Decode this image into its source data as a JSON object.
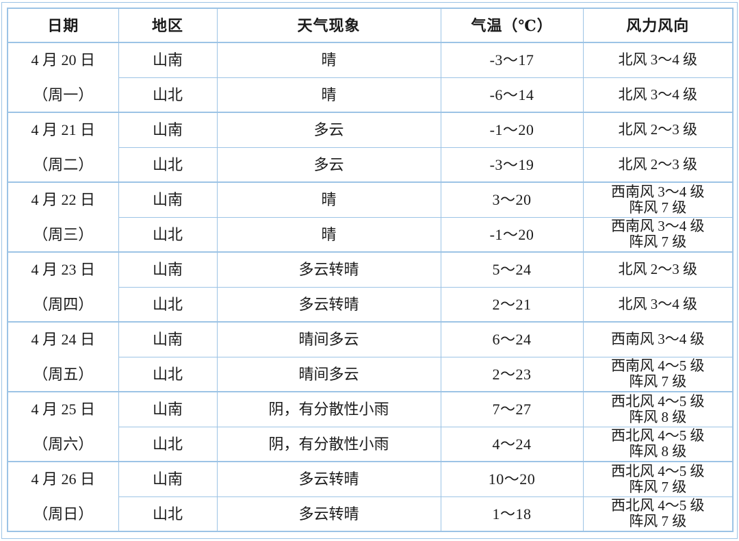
{
  "colors": {
    "border": "#9cc3e5",
    "text": "#1a1a1a",
    "background": "#ffffff"
  },
  "table": {
    "headers": [
      "日期",
      "地区",
      "天气现象",
      "气温（℃）",
      "风力风向"
    ],
    "days": [
      {
        "date1": "4 月 20 日",
        "date2": "（周一）",
        "rows": [
          {
            "region": "山南",
            "weather": "晴",
            "temp": "-3～17",
            "wind": "北风 3～4 级"
          },
          {
            "region": "山北",
            "weather": "晴",
            "temp": "-6～14",
            "wind": "北风 3～4 级"
          }
        ]
      },
      {
        "date1": "4 月 21 日",
        "date2": "（周二）",
        "rows": [
          {
            "region": "山南",
            "weather": "多云",
            "temp": "-1～20",
            "wind": "北风 2～3 级"
          },
          {
            "region": "山北",
            "weather": "多云",
            "temp": "-3～19",
            "wind": "北风 2～3 级"
          }
        ]
      },
      {
        "date1": "4 月 22 日",
        "date2": "（周三）",
        "rows": [
          {
            "region": "山南",
            "weather": "晴",
            "temp": "3～20",
            "wind": "西南风 3～4 级\n阵风 7 级"
          },
          {
            "region": "山北",
            "weather": "晴",
            "temp": "-1～20",
            "wind": "西南风 3～4 级\n阵风 7 级"
          }
        ]
      },
      {
        "date1": "4 月 23 日",
        "date2": "（周四）",
        "rows": [
          {
            "region": "山南",
            "weather": "多云转晴",
            "temp": "5～24",
            "wind": "北风 2～3 级"
          },
          {
            "region": "山北",
            "weather": "多云转晴",
            "temp": "2～21",
            "wind": "北风 3～4 级"
          }
        ]
      },
      {
        "date1": "4 月 24 日",
        "date2": "（周五）",
        "rows": [
          {
            "region": "山南",
            "weather": "晴间多云",
            "temp": "6～24",
            "wind": "西南风 3～4 级"
          },
          {
            "region": "山北",
            "weather": "晴间多云",
            "temp": "2～23",
            "wind": "西南风 4～5 级\n阵风 7 级"
          }
        ]
      },
      {
        "date1": "4 月 25 日",
        "date2": "（周六）",
        "rows": [
          {
            "region": "山南",
            "weather": "阴，有分散性小雨",
            "temp": "7～27",
            "wind": "西北风 4～5 级\n阵风 8 级"
          },
          {
            "region": "山北",
            "weather": "阴，有分散性小雨",
            "temp": "4～24",
            "wind": "西北风 4～5 级\n阵风 8 级"
          }
        ]
      },
      {
        "date1": "4 月 26 日",
        "date2": "（周日）",
        "rows": [
          {
            "region": "山南",
            "weather": "多云转晴",
            "temp": "10～20",
            "wind": "西北风 4～5 级\n阵风 7 级"
          },
          {
            "region": "山北",
            "weather": "多云转晴",
            "temp": "1～18",
            "wind": "西北风 4～5 级\n阵风 7 级"
          }
        ]
      }
    ]
  }
}
